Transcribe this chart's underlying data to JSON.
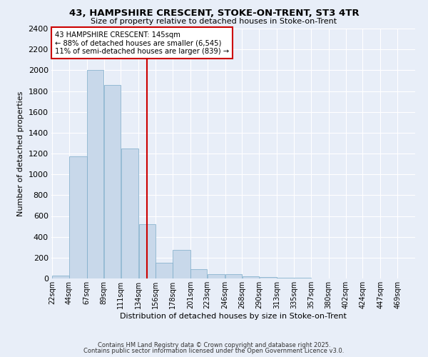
{
  "title": "43, HAMPSHIRE CRESCENT, STOKE-ON-TRENT, ST3 4TR",
  "subtitle": "Size of property relative to detached houses in Stoke-on-Trent",
  "xlabel": "Distribution of detached houses by size in Stoke-on-Trent",
  "ylabel": "Number of detached properties",
  "bar_color": "#c8d8ea",
  "bar_edge_color": "#7aaac8",
  "background_color": "#e8eef8",
  "grid_color": "#ffffff",
  "bin_edges": [
    22,
    44,
    67,
    89,
    111,
    134,
    156,
    178,
    201,
    223,
    246,
    268,
    290,
    313,
    335,
    357,
    380,
    402,
    424,
    447,
    469
  ],
  "bar_heights": [
    30,
    1175,
    2000,
    1860,
    1250,
    520,
    150,
    275,
    90,
    40,
    40,
    20,
    15,
    5,
    5,
    2,
    2,
    2,
    2,
    2
  ],
  "ylim": [
    0,
    2400
  ],
  "yticks": [
    0,
    200,
    400,
    600,
    800,
    1000,
    1200,
    1400,
    1600,
    1800,
    2000,
    2200,
    2400
  ],
  "property_size": 145,
  "vline_color": "#cc0000",
  "annotation_text": "43 HAMPSHIRE CRESCENT: 145sqm\n← 88% of detached houses are smaller (6,545)\n11% of semi-detached houses are larger (839) →",
  "annotation_box_color": "#ffffff",
  "annotation_border_color": "#cc0000",
  "footer_line1": "Contains HM Land Registry data © Crown copyright and database right 2025.",
  "footer_line2": "Contains public sector information licensed under the Open Government Licence v3.0.",
  "tick_labels": [
    "22sqm",
    "44sqm",
    "67sqm",
    "89sqm",
    "111sqm",
    "134sqm",
    "156sqm",
    "178sqm",
    "201sqm",
    "223sqm",
    "246sqm",
    "268sqm",
    "290sqm",
    "313sqm",
    "335sqm",
    "357sqm",
    "380sqm",
    "402sqm",
    "424sqm",
    "447sqm",
    "469sqm"
  ]
}
